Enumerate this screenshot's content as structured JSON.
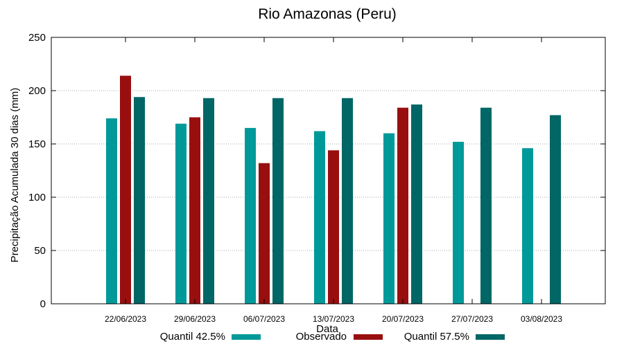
{
  "chart_data": {
    "type": "bar",
    "title": "Rio Amazonas (Peru)",
    "xlabel": "Data",
    "ylabel": "Precipitação Acumulada 30 dias (mm)",
    "ylim": [
      0,
      250
    ],
    "yticks": [
      0,
      50,
      100,
      150,
      200,
      250
    ],
    "grid": true,
    "legend_position": "bottom",
    "categories": [
      "22/06/2023",
      "29/06/2023",
      "06/07/2023",
      "13/07/2023",
      "20/07/2023",
      "27/07/2023",
      "03/08/2023"
    ],
    "series": [
      {
        "name": "Quantil 42.5%",
        "color": "#009999",
        "values": [
          174,
          169,
          165,
          162,
          160,
          152,
          146
        ]
      },
      {
        "name": "Observado",
        "color": "#990f0f",
        "values": [
          214,
          175,
          132,
          144,
          184,
          null,
          null
        ]
      },
      {
        "name": "Quantil 57.5%",
        "color": "#006666",
        "values": [
          194,
          193,
          193,
          193,
          187,
          184,
          177
        ]
      }
    ]
  }
}
